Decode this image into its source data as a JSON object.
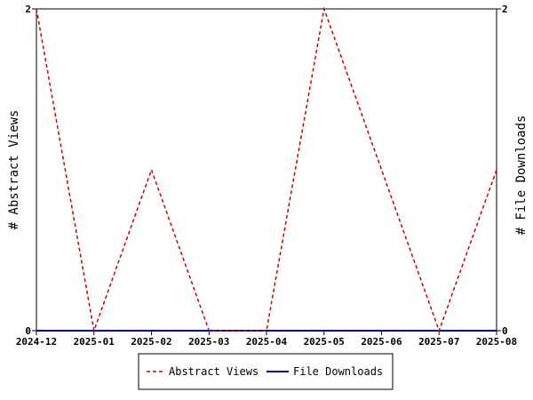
{
  "chart_data": {
    "type": "line",
    "title": "",
    "categories": [
      "2024-12",
      "2025-01",
      "2025-02",
      "2025-03",
      "2025-04",
      "2025-05",
      "2025-06",
      "2025-07",
      "2025-08"
    ],
    "series": [
      {
        "name": "Abstract Views",
        "values": [
          2,
          0,
          1,
          0,
          0,
          2,
          1,
          0,
          1
        ],
        "color": "#cc0000",
        "style": "dashed",
        "axis": "left"
      },
      {
        "name": "File Downloads",
        "values": [
          0,
          0,
          0,
          0,
          0,
          0,
          0,
          0,
          0
        ],
        "color": "#0000aa",
        "style": "solid",
        "axis": "right"
      }
    ],
    "ylabel_left": "# Abstract Views",
    "ylabel_right": "# File Downloads",
    "ylim_left": [
      0,
      2
    ],
    "ylim_right": [
      0,
      2
    ],
    "yticks_left": [
      "0",
      "2"
    ],
    "yticks_right": [
      "0",
      "2"
    ],
    "grid": false,
    "legend": "bottom"
  }
}
